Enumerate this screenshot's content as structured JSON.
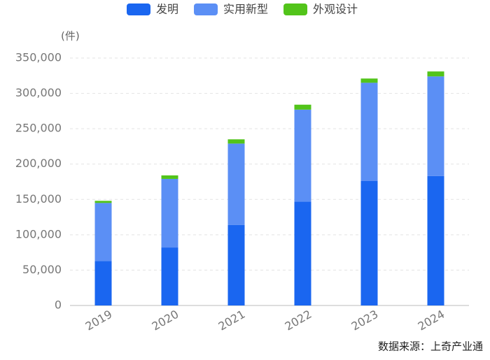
{
  "chart_data": {
    "type": "stacked_bar",
    "unit_label": "(件)",
    "source": "数据来源：上奇产业通",
    "categories": [
      "2019",
      "2020",
      "2021",
      "2022",
      "2023",
      "2024"
    ],
    "series": [
      {
        "name": "发明",
        "color": "#1a66f0",
        "values": [
          63000,
          82000,
          114000,
          147000,
          176000,
          183000
        ]
      },
      {
        "name": "实用新型",
        "color": "#5b8ff5",
        "values": [
          82000,
          97000,
          115000,
          130000,
          139000,
          141000
        ]
      },
      {
        "name": "外观设计",
        "color": "#52c41a",
        "values": [
          3000,
          5000,
          6000,
          7000,
          6000,
          7000
        ]
      }
    ],
    "ylim": [
      0,
      350000
    ],
    "yticks": [
      0,
      {
        "value": 50000,
        "label": "50,000"
      },
      {
        "value": 100000,
        "label": "100,000"
      },
      {
        "value": 150000,
        "label": "150,000"
      },
      {
        "value": 200000,
        "label": "200,000"
      },
      {
        "value": 250000,
        "label": "250,000"
      },
      {
        "value": 300000,
        "label": "300,000"
      },
      {
        "value": 350000,
        "label": "350,000"
      }
    ],
    "grid": true
  }
}
